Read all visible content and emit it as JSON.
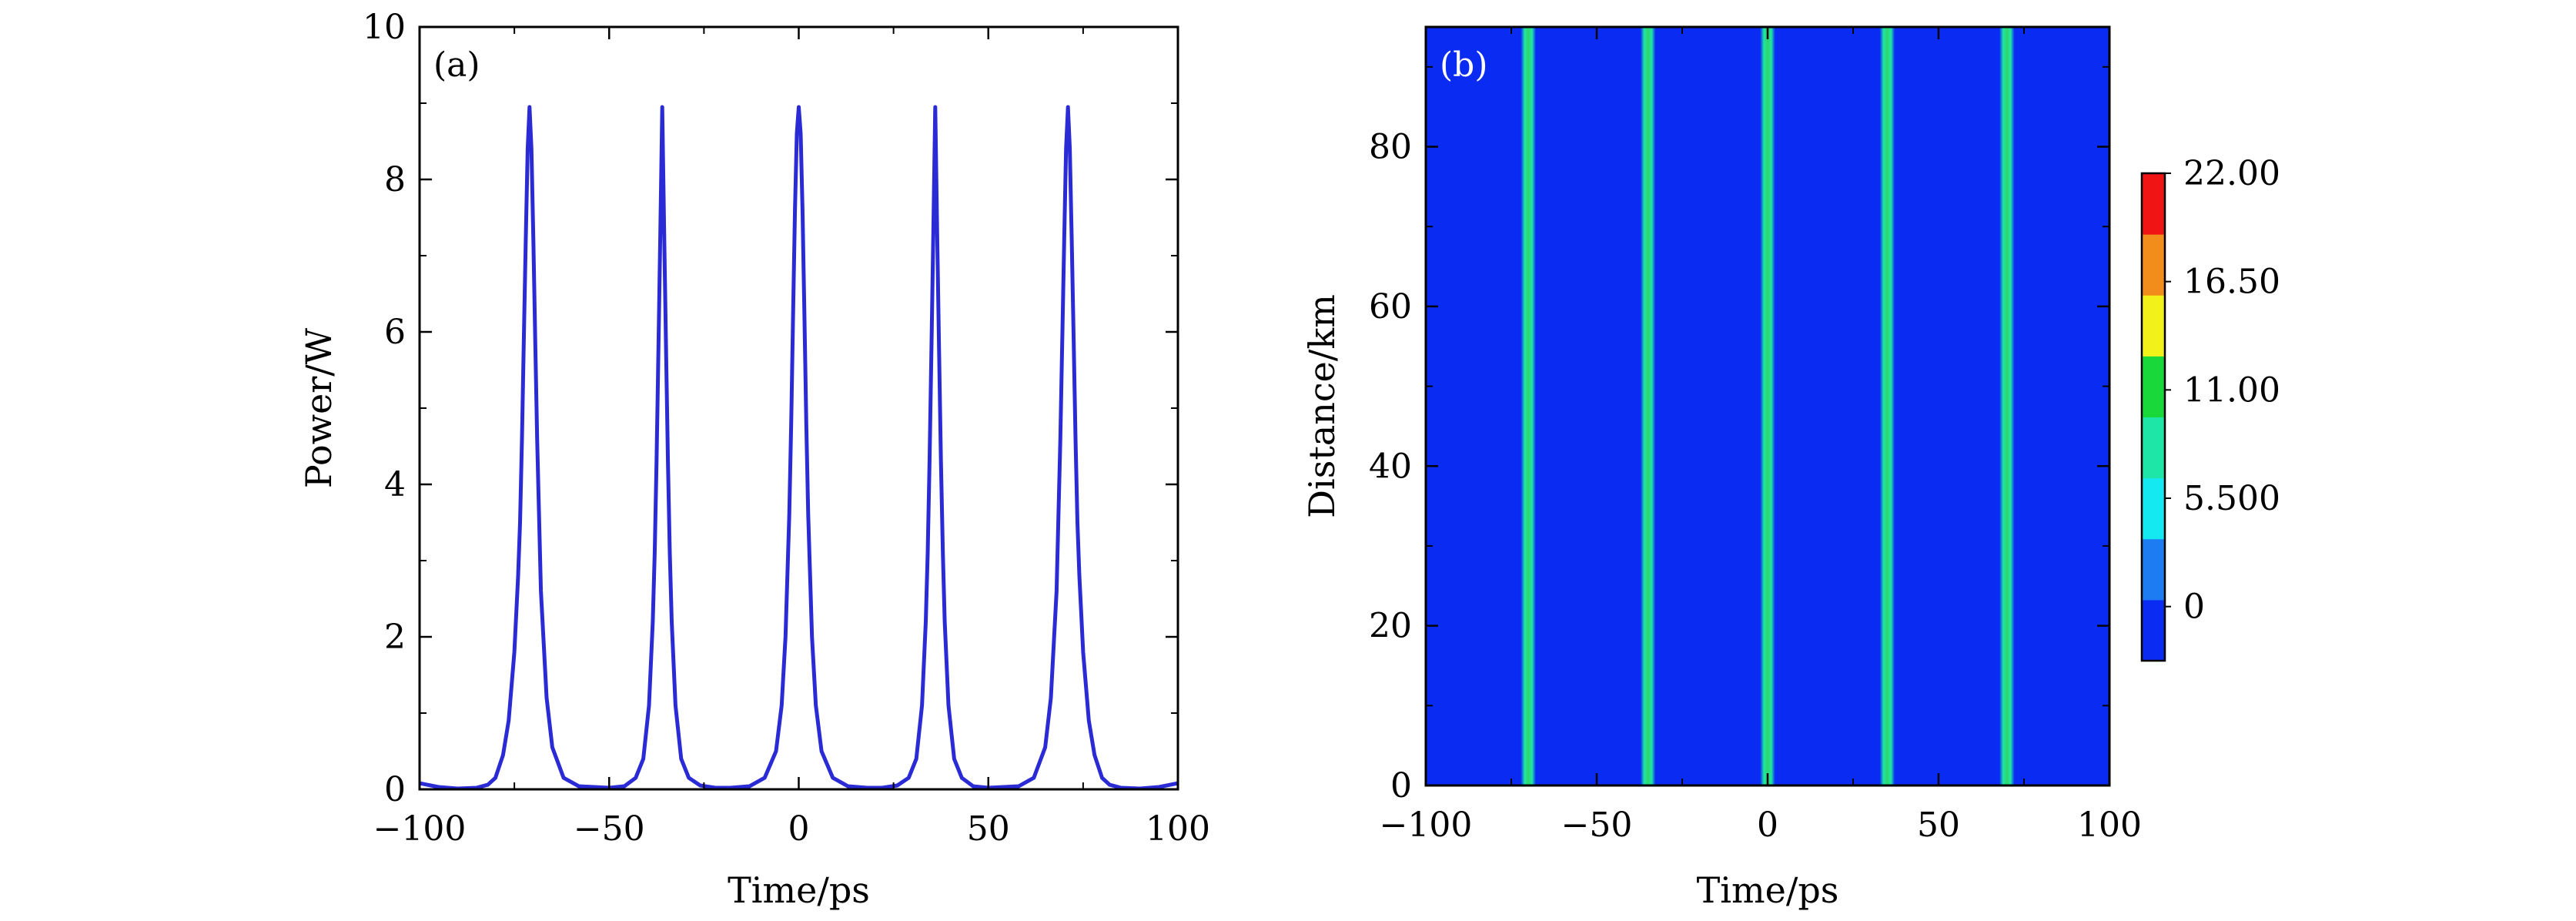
{
  "chart_data": [
    {
      "type": "line",
      "panel_label": "(a)",
      "xlabel": "Time/ps",
      "ylabel": "Power/W",
      "xlim": [
        -100,
        100
      ],
      "ylim": [
        0,
        10
      ],
      "xticks": [
        -100,
        -50,
        0,
        50,
        100
      ],
      "xtick_labels": [
        "−100",
        "−50",
        "0",
        "50",
        "100"
      ],
      "yticks": [
        0,
        2,
        4,
        6,
        8,
        10
      ],
      "ytick_labels": [
        "0",
        "2",
        "4",
        "6",
        "8",
        "10"
      ],
      "grid": false,
      "line_color": "#2b2bd6",
      "series": [
        {
          "x": [
            -100,
            -95,
            -90,
            -85,
            -82,
            -80,
            -78,
            -76.5,
            -75,
            -74,
            -73.5,
            -73,
            -72.5,
            -72,
            -71.5,
            -71,
            -70.5,
            -70,
            -69.5,
            -69,
            -68,
            -66.5,
            -65,
            -62,
            -58,
            -54,
            -50,
            -46,
            -43,
            -41,
            -39.5,
            -38.5,
            -38,
            -37.5,
            -37,
            -36.5,
            -36,
            -35.5,
            -35,
            -34.5,
            -34,
            -33.5,
            -32.5,
            -31,
            -29,
            -26,
            -22,
            -18,
            -13,
            -9,
            -6,
            -4.5,
            -3.5,
            -2.5,
            -2,
            -1.5,
            -1,
            -0.5,
            0,
            0.5,
            1,
            1.5,
            2,
            2.5,
            3.5,
            4.5,
            6,
            9,
            13,
            18,
            22,
            26,
            29,
            31,
            32.5,
            33.5,
            34,
            34.5,
            35,
            35.5,
            36,
            36.5,
            37,
            37.5,
            38,
            38.5,
            39.5,
            41,
            43,
            46,
            50,
            54,
            58,
            62,
            65,
            66.5,
            68,
            69,
            69.5,
            70,
            70.5,
            71,
            71.5,
            72,
            72.5,
            73,
            73.5,
            74,
            75,
            76.5,
            78,
            80,
            82,
            85,
            90,
            95,
            100
          ],
          "y": [
            0.08,
            0.03,
            0.01,
            0.02,
            0.06,
            0.15,
            0.45,
            0.9,
            1.8,
            2.8,
            3.5,
            4.6,
            5.9,
            7.2,
            8.4,
            8.95,
            8.4,
            7.2,
            5.9,
            4.6,
            2.6,
            1.2,
            0.55,
            0.15,
            0.04,
            0.03,
            0.02,
            0.04,
            0.15,
            0.4,
            1.1,
            2.2,
            3.1,
            4.3,
            5.8,
            7.3,
            8.95,
            7.3,
            5.8,
            4.3,
            3.1,
            2.2,
            1.1,
            0.4,
            0.15,
            0.05,
            0.02,
            0.02,
            0.04,
            0.15,
            0.5,
            1.1,
            2.0,
            3.6,
            4.8,
            6.2,
            7.6,
            8.6,
            8.95,
            8.6,
            7.6,
            6.2,
            4.8,
            3.6,
            2.0,
            1.1,
            0.5,
            0.15,
            0.04,
            0.02,
            0.02,
            0.05,
            0.15,
            0.4,
            1.1,
            2.2,
            3.1,
            4.3,
            5.8,
            7.3,
            8.95,
            7.3,
            5.8,
            4.3,
            3.1,
            2.2,
            1.1,
            0.4,
            0.15,
            0.04,
            0.02,
            0.03,
            0.04,
            0.15,
            0.55,
            1.2,
            2.6,
            4.6,
            5.9,
            7.2,
            8.4,
            8.95,
            8.4,
            7.2,
            5.9,
            4.6,
            3.5,
            2.8,
            1.8,
            0.9,
            0.45,
            0.15,
            0.06,
            0.02,
            0.01,
            0.03,
            0.08
          ]
        }
      ]
    },
    {
      "type": "heatmap",
      "panel_label": "(b)",
      "xlabel": "Time/ps",
      "ylabel": "Distance/km",
      "xlim": [
        -100,
        100
      ],
      "ylim": [
        0,
        95
      ],
      "xticks": [
        -100,
        -50,
        0,
        50,
        100
      ],
      "xtick_labels": [
        "−100",
        "−50",
        "0",
        "50",
        "100"
      ],
      "yticks": [
        0,
        20,
        40,
        60,
        80
      ],
      "ytick_labels": [
        "0",
        "20",
        "40",
        "60",
        "80"
      ],
      "background_color": "#0a2cf2",
      "pulse_color": "#2fd66a",
      "pulse_centers": [
        -70,
        -35,
        0,
        35,
        70
      ],
      "colorbar": {
        "ticks": [
          0,
          5.5,
          11,
          16.5,
          22
        ],
        "tick_labels": [
          "0",
          "5.500",
          "11.00",
          "16.50",
          "22.00"
        ],
        "min": -2.75,
        "max": 22,
        "colors": [
          "#0a2cf2",
          "#1e7cf2",
          "#14e8f0",
          "#1ee6a6",
          "#18d83a",
          "#f2f21a",
          "#f28c1a",
          "#f01414"
        ]
      }
    }
  ]
}
